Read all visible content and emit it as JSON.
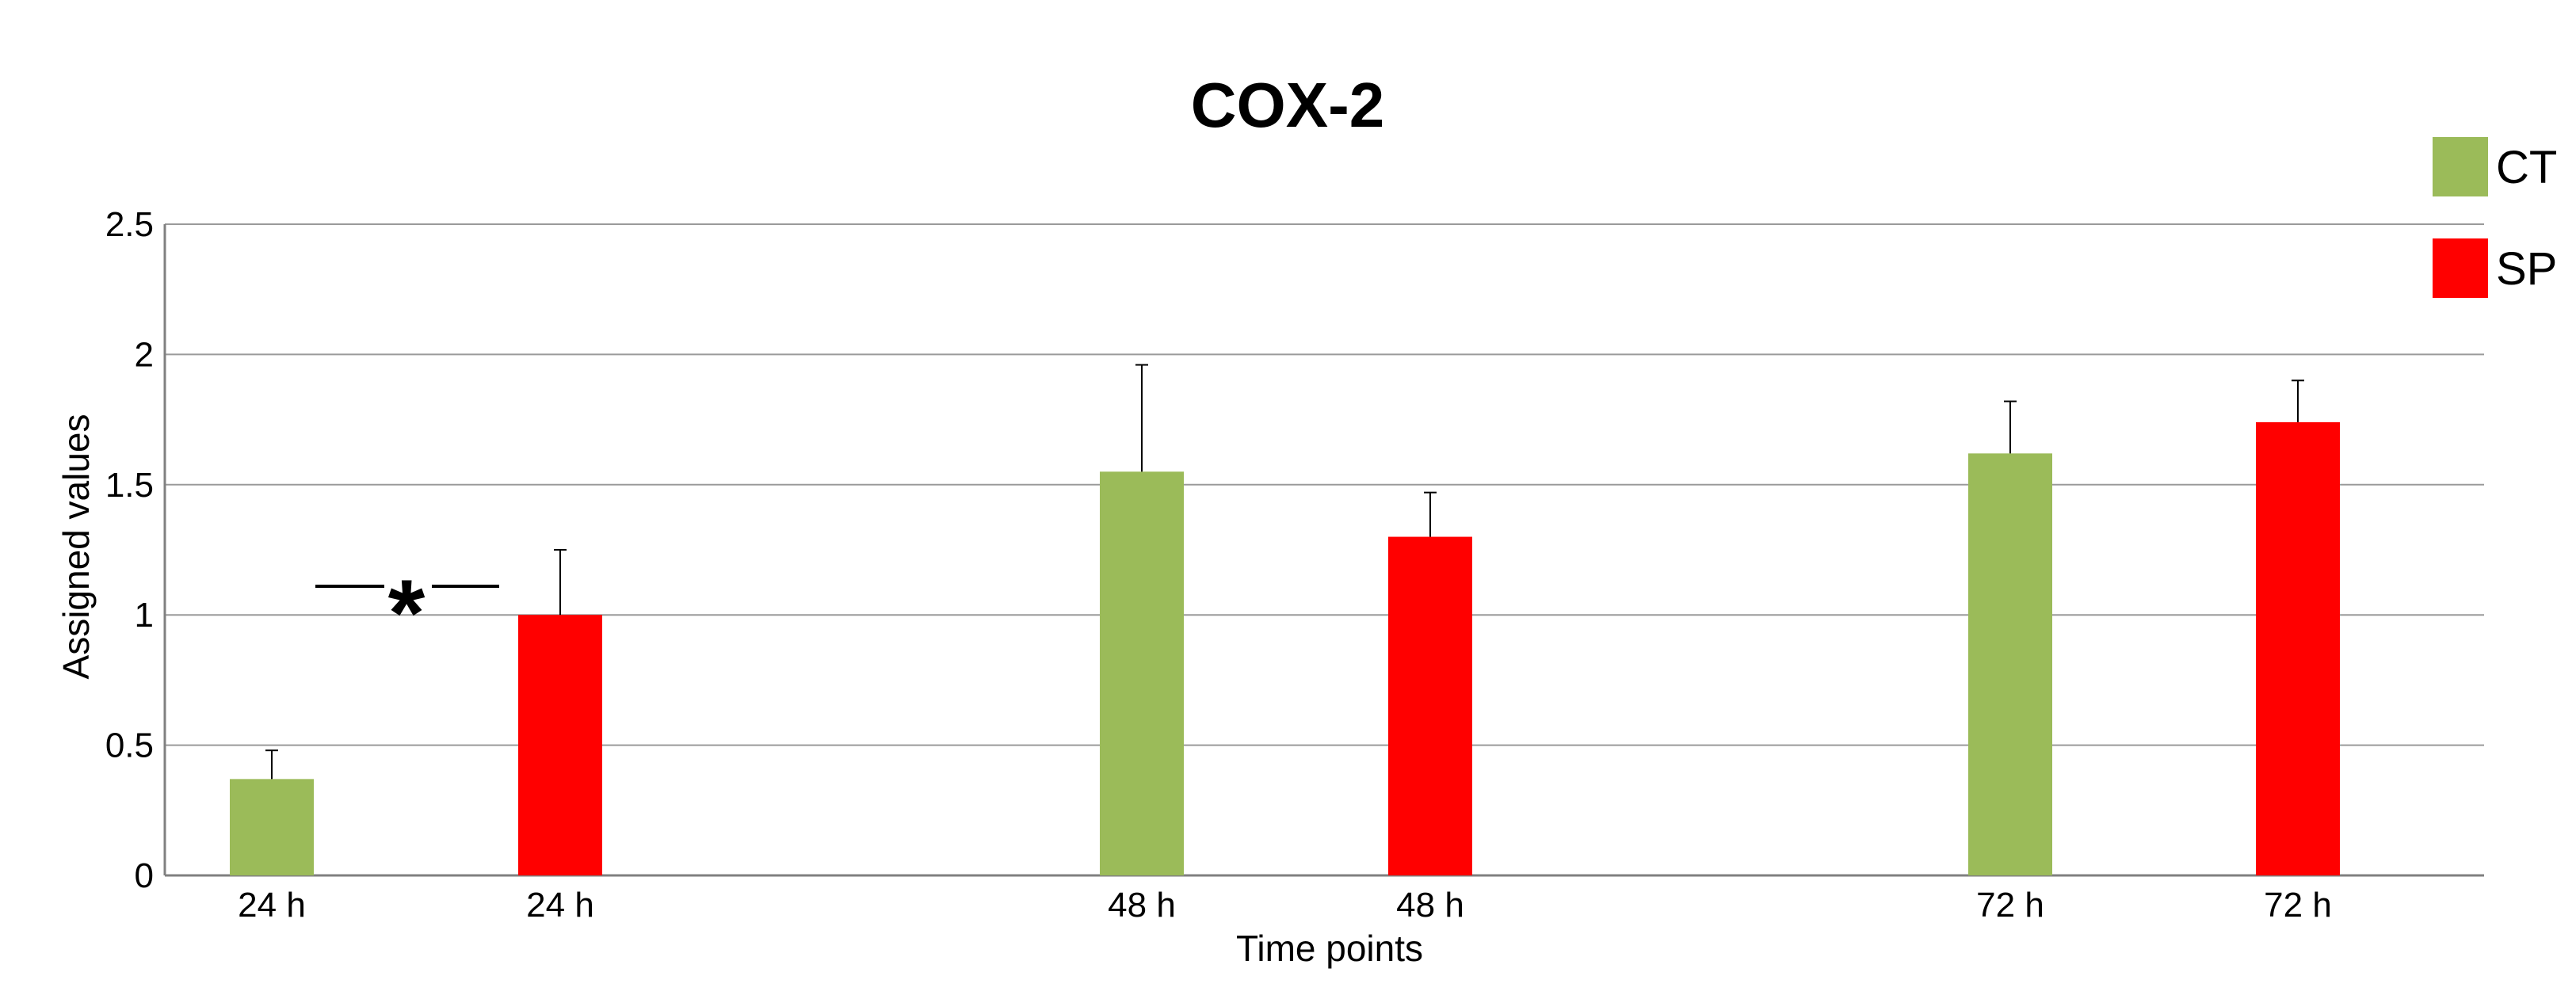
{
  "chart_data": {
    "type": "bar",
    "title": "COX-2",
    "xlabel": "Time points",
    "ylabel": "Assigned values",
    "ylim": [
      0,
      2.5
    ],
    "yticks": [
      "0",
      "0.5",
      "1",
      "1.5",
      "2",
      "2.5"
    ],
    "yticks_values": [
      0,
      0.5,
      1,
      1.5,
      2,
      2.5
    ],
    "grid": true,
    "legend": {
      "position": "top-right",
      "entries": [
        {
          "name": "CT",
          "color": "#9bbb59"
        },
        {
          "name": "SP",
          "color": "#ff0000"
        }
      ]
    },
    "bars": [
      {
        "label": "24 h",
        "series": "CT",
        "value": 0.37,
        "error": 0.11
      },
      {
        "label": "24 h",
        "series": "SP",
        "value": 1.0,
        "error": 0.25
      },
      {
        "label": "48 h",
        "series": "CT",
        "value": 1.55,
        "error": 0.41
      },
      {
        "label": "48 h",
        "series": "SP",
        "value": 1.3,
        "error": 0.17
      },
      {
        "label": "72 h",
        "series": "CT",
        "value": 1.62,
        "error": 0.2
      },
      {
        "label": "72 h",
        "series": "SP",
        "value": 1.74,
        "error": 0.16
      }
    ],
    "annotations": [
      {
        "text": "*",
        "between": [
          0,
          1
        ]
      }
    ]
  }
}
